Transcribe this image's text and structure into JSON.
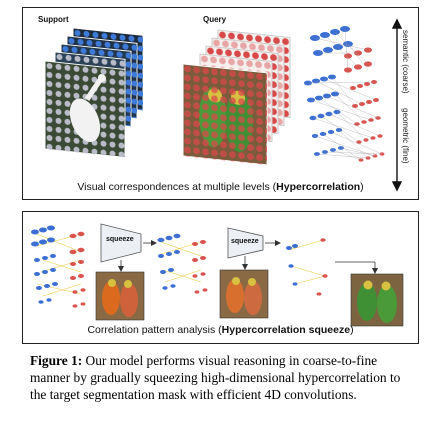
{
  "top_panel": {
    "support_label": "Support",
    "query_label": "Query",
    "caption_prefix": "Visual correspondences at multiple levels (",
    "caption_bold": "Hypercorrelation",
    "caption_suffix": ")",
    "axis_semantic": "semantic (coarse)",
    "axis_geometric": "geometric (fine)"
  },
  "bottom_panel": {
    "squeeze_label_1": "squeeze",
    "squeeze_label_2": "squeeze",
    "caption_prefix": "Correlation pattern analysis (",
    "caption_bold": "Hypercorrelation squeeze",
    "caption_suffix": ")"
  },
  "figure_caption": {
    "label": "Figure 1:",
    "text": " Our model performs visual reasoning in coarse-to-fine manner by gradually squeezing high-dimensional hypercorrelation to the target segmentation mask with efficient 4D convolutions."
  },
  "colors": {
    "support_dots": "#3e7ad8",
    "query_dots": "#d84a4a",
    "layer_node_red": "#d9534f",
    "layer_node_blue": "#3b6fd3",
    "link_yellow": "#e8c840"
  }
}
